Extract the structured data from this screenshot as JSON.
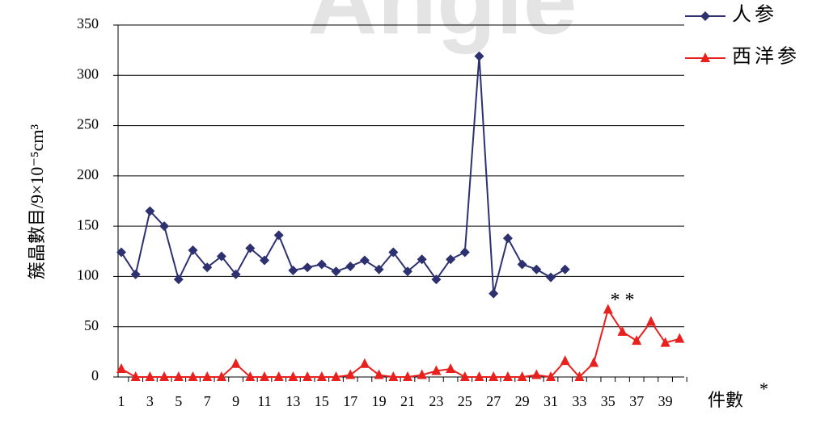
{
  "chart_data": {
    "type": "line",
    "watermark": "Angle",
    "ylabel": "簇晶數目/9×10⁻⁵cm³",
    "xlabel": "件數",
    "xlabel_note": "*",
    "annotations": [
      {
        "text": "* *",
        "category": 36,
        "value": 75
      }
    ],
    "categories": [
      1,
      null,
      3,
      null,
      5,
      null,
      7,
      null,
      9,
      null,
      11,
      null,
      13,
      null,
      15,
      null,
      17,
      null,
      19,
      null,
      21,
      null,
      23,
      null,
      25,
      null,
      27,
      null,
      29,
      null,
      31,
      null,
      33,
      null,
      35,
      null,
      37,
      null,
      39,
      null
    ],
    "series": [
      {
        "name": "人参",
        "color": "#2e3170",
        "marker": "diamond",
        "values": [
          124,
          102,
          165,
          150,
          97,
          126,
          109,
          120,
          102,
          128,
          116,
          141,
          106,
          109,
          112,
          105,
          110,
          116,
          107,
          124,
          105,
          117,
          97,
          117,
          124,
          319,
          83,
          138,
          112,
          107,
          99,
          107,
          null,
          null,
          null,
          null,
          null,
          null,
          null,
          null
        ]
      },
      {
        "name": "西洋参",
        "color": "#e8201e",
        "marker": "triangle",
        "values": [
          8,
          0,
          0,
          0,
          0,
          0,
          0,
          0,
          13,
          0,
          0,
          0,
          0,
          0,
          0,
          0,
          2,
          13,
          2,
          0,
          0,
          2,
          6,
          8,
          0,
          0,
          0,
          0,
          0,
          2,
          0,
          16,
          0,
          14,
          67,
          45,
          36,
          55,
          34,
          38
        ]
      }
    ],
    "ylim": [
      0,
      350
    ],
    "yticks": [
      0,
      50,
      100,
      150,
      200,
      250,
      300,
      350
    ],
    "grid": true,
    "legend": "top-right"
  }
}
